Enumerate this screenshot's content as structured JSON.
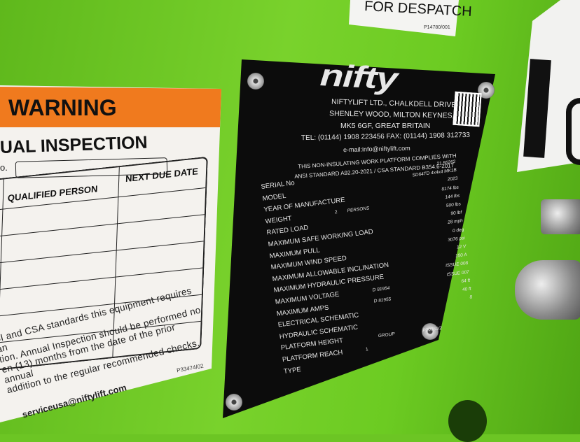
{
  "warning_sticker": {
    "header": "WARNING",
    "title": "UAL INSPECTION",
    "columns": [
      "QUALIFIED PERSON",
      "NEXT DUE DATE"
    ],
    "field_label": "o.",
    "paragraph": [
      "SI and CSA standards this equipment requires an",
      "tion. Annual Inspection should be performed no",
      "en (13) months from the date of the prior annual",
      "addition to the regular recommended checks."
    ],
    "email": "serviceusa@niftylift.com",
    "part_code": "P33474/02",
    "header_color": "#f07a1e"
  },
  "despatch_sticker": {
    "text": "FOR DESPATCH",
    "part_code": "P14780/001"
  },
  "plate": {
    "logo": "nifty",
    "address": [
      "NIFTYLIFT LTD., CHALKDELL DRIVE,",
      "SHENLEY WOOD, MILTON KEYNES,",
      "MK5 6GF, GREAT BRITAIN",
      "TEL: (01144) 1908 223456 FAX: (01144) 1908 312733",
      "e-mail:info@niftylift.com"
    ],
    "compliance": [
      "THIS NON-INSULATING WORK PLATFORM COMPLIES WITH",
      "ANSI STANDARD A92.20-2021 / CSA STANDARD B354.6-2017"
    ],
    "labels": [
      "SERIAL No",
      "MODEL",
      "YEAR OF MANUFACTURE",
      "WEIGHT",
      "RATED LOAD",
      "MAXIMUM SAFE WORKING LOAD",
      "MAXIMUM PULL",
      "MAXIMUM WIND SPEED",
      "MAXIMUM ALLOWABLE INCLINATION",
      "MAXIMUM HYDRAULIC PRESSURE",
      "MAXIMUM VOLTAGE",
      "MAXIMUM AMPS",
      "ELECTRICAL SCHEMATIC",
      "HYDRAULIC SCHEMATIC",
      "PLATFORM HEIGHT",
      "PLATFORM REACH",
      "TYPE"
    ],
    "values": [
      "21   55262",
      "SD64TD 4x4x4 MK1B",
      "2023",
      "8174 lbs",
      "144 lbs",
      "500 lbs",
      "90 lbf",
      "28 mph",
      "0 deg",
      "3076 psi",
      "12 V",
      "150 A",
      "ISSUE 008",
      "ISSUE 007",
      "64 ft",
      "40 ft",
      "8"
    ],
    "persons_count": "2",
    "persons_label": "PERSONS",
    "schematics": [
      "D 81954",
      "D 81955"
    ],
    "group_label": "GROUP",
    "type_value": "1",
    "part_code": "P20760/2"
  },
  "colors": {
    "machine_green": "#6cc524",
    "plate_black": "#0c0c0c"
  }
}
